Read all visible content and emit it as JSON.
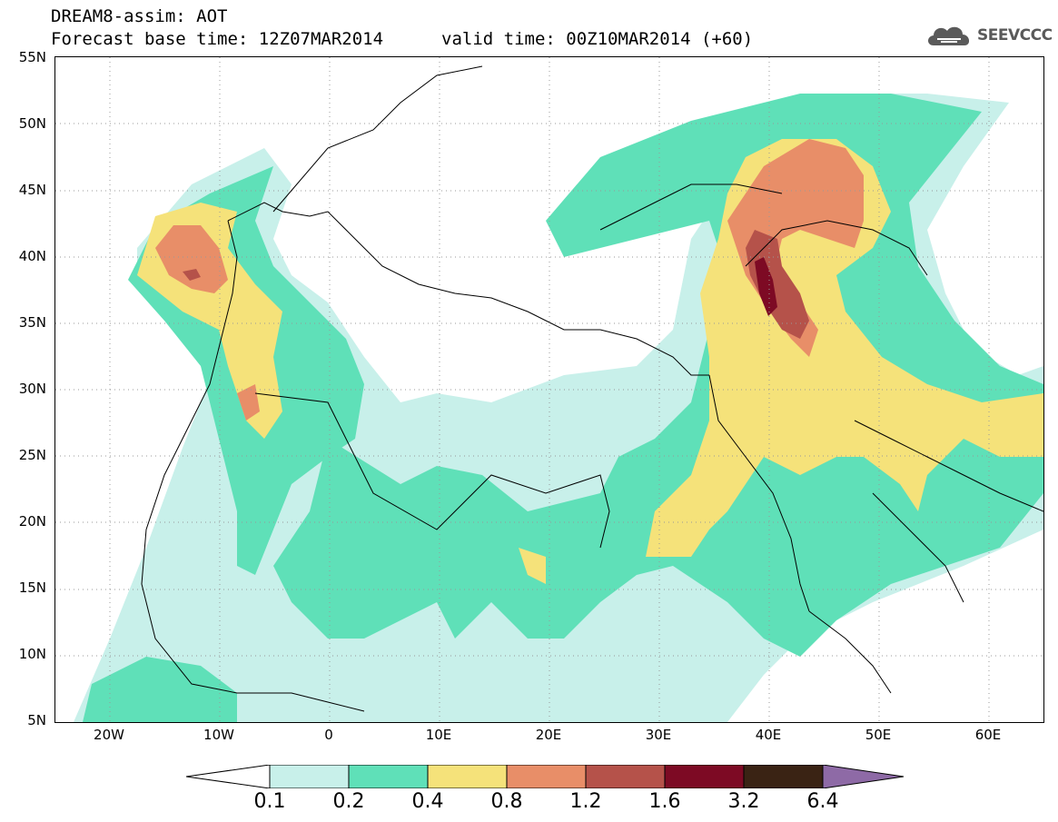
{
  "title": {
    "line1": "DREAM8-assim: AOT",
    "line2": "Forecast base time: 12Z07MAR2014",
    "valid": "valid time: 00Z10MAR2014 (+60)"
  },
  "logo": {
    "text": "SEEVCCC",
    "icon": "cloud-icon",
    "color": "#5a5a5a"
  },
  "axes": {
    "lat_labels": [
      "55N",
      "50N",
      "45N",
      "40N",
      "35N",
      "30N",
      "25N",
      "20N",
      "15N",
      "10N",
      "5N"
    ],
    "lon_labels": [
      "20W",
      "10W",
      "0",
      "10E",
      "20E",
      "30E",
      "40E",
      "50E",
      "60E"
    ],
    "lat_range": [
      5,
      55
    ],
    "lon_range": [
      -25,
      65
    ]
  },
  "colorbar": {
    "labels": [
      "0.1",
      "0.2",
      "0.4",
      "0.8",
      "1.2",
      "1.6",
      "3.2",
      "6.4"
    ],
    "colors": [
      "#c8f0ea",
      "#5fe0b8",
      "#f5e27a",
      "#e88e68",
      "#b5524a",
      "#7d0a24",
      "#3a2314",
      "#8e6aa6"
    ],
    "under_color": "#ffffff"
  }
}
